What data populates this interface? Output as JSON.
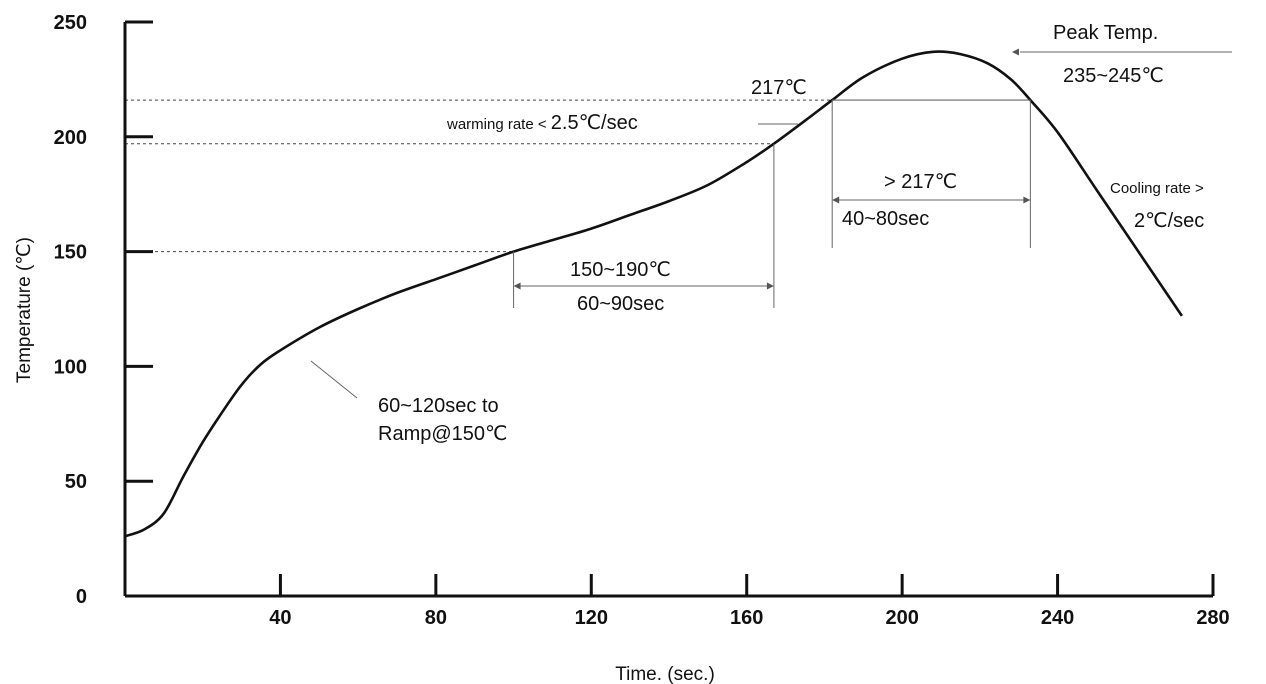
{
  "chart_data": {
    "type": "line",
    "title": "",
    "xlabel": "Time. (sec.)",
    "ylabel": "Temperature (℃)",
    "xlim": [
      0,
      280
    ],
    "ylim": [
      0,
      250
    ],
    "x_ticks": [
      "40",
      "80",
      "120",
      "160",
      "200",
      "240",
      "280"
    ],
    "y_ticks": [
      "0",
      "50",
      "100",
      "150",
      "200",
      "250"
    ],
    "grid": false,
    "series": [
      {
        "points": [
          [
            0,
            26
          ],
          [
            5,
            29
          ],
          [
            10,
            36
          ],
          [
            15,
            52
          ],
          [
            20,
            67
          ],
          [
            25,
            80
          ],
          [
            30,
            92
          ],
          [
            35,
            101
          ],
          [
            40,
            107
          ],
          [
            50,
            117
          ],
          [
            60,
            125
          ],
          [
            70,
            132
          ],
          [
            80,
            138
          ],
          [
            90,
            144
          ],
          [
            100,
            150
          ],
          [
            110,
            155
          ],
          [
            120,
            160
          ],
          [
            130,
            166
          ],
          [
            140,
            172
          ],
          [
            150,
            179
          ],
          [
            160,
            189
          ],
          [
            167,
            197
          ],
          [
            175,
            207
          ],
          [
            182,
            216
          ],
          [
            190,
            226
          ],
          [
            200,
            234
          ],
          [
            208,
            237
          ],
          [
            215,
            236
          ],
          [
            222,
            232
          ],
          [
            228,
            225
          ],
          [
            233,
            216
          ],
          [
            240,
            202
          ],
          [
            250,
            177
          ],
          [
            260,
            152
          ],
          [
            272,
            122
          ]
        ]
      }
    ],
    "reference_lines": {
      "y_values": [
        150,
        197,
        216
      ]
    },
    "annotations": {
      "peak_label": "Peak Temp.",
      "peak_range": "235~245℃",
      "t217_label": "217℃",
      "warming_prefix": "warming rate < ",
      "warming_value": "2.5℃/sec",
      "above217_label": "> 217℃",
      "above217_time": "40~80sec",
      "soak_temp": "150~190℃",
      "soak_time": "60~90sec",
      "ramp_line1": "60~120sec to",
      "ramp_line2": "Ramp@150℃",
      "cooling_line1": "Cooling rate >",
      "cooling_line2": "2℃/sec"
    }
  }
}
